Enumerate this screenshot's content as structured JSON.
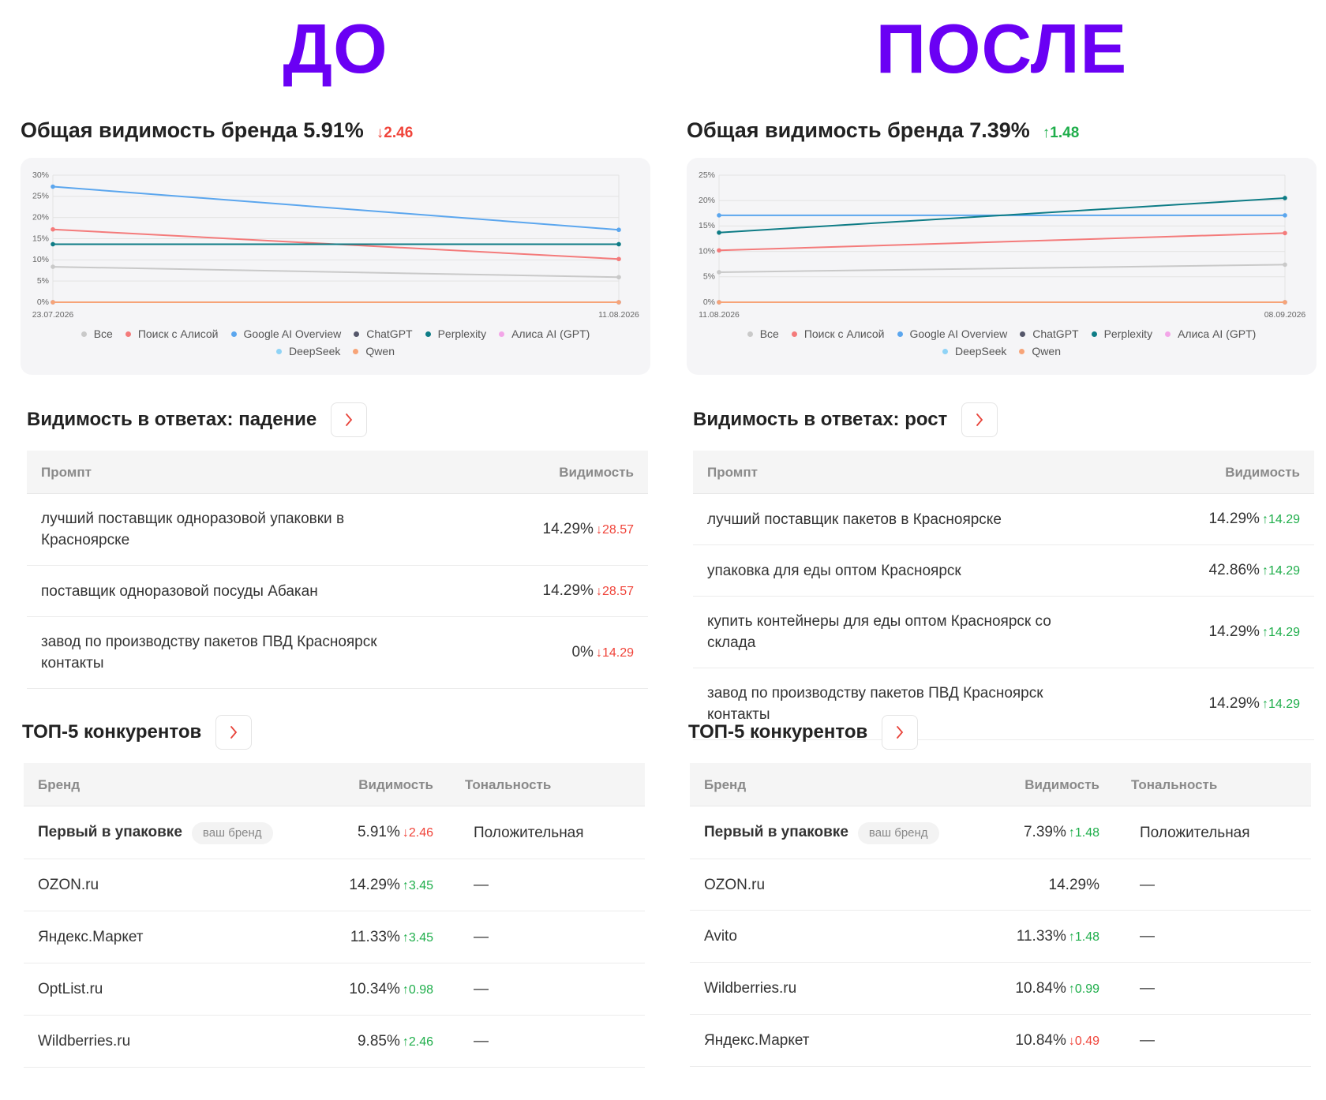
{
  "panels": [
    {
      "label": "ДО",
      "title": "Общая видимость бренда 5.91%",
      "delta": "↓2.46",
      "prompts": {
        "title": "Видимость в ответах: падение",
        "headers": [
          "Промпт",
          "Видимость"
        ],
        "rows": [
          {
            "prompt": "лучший поставщик одноразовой упаковки в Красноярске",
            "value": "14.29%",
            "delta": "↓28.57"
          },
          {
            "prompt": "поставщик одноразовой посуды Абакан",
            "value": "14.29%",
            "delta": "↓28.57"
          },
          {
            "prompt": "завод по производству пакетов ПВД Красноярск контакты",
            "value": "0%",
            "delta": "↓14.29"
          }
        ]
      },
      "competitors": {
        "title": "ТОП-5 конкурентов",
        "headers": [
          "Бренд",
          "Видимость",
          "Тональность"
        ],
        "rows": [
          {
            "name": "Первый в упаковке",
            "badge": "ваш бренд",
            "value": "5.91%",
            "delta": "↓2.46",
            "tone": "Положительная"
          },
          {
            "name": "OZON.ru",
            "value": "14.29%",
            "delta": "↑3.45",
            "tone": "—"
          },
          {
            "name": "Яндекс.Маркет",
            "value": "11.33%",
            "delta": "↑3.45",
            "tone": "—"
          },
          {
            "name": "OptList.ru",
            "value": "10.34%",
            "delta": "↑0.98",
            "tone": "—"
          },
          {
            "name": "Wildberries.ru",
            "value": "9.85%",
            "delta": "↑2.46",
            "tone": "—"
          }
        ]
      }
    },
    {
      "label": "ПОСЛЕ",
      "title": "Общая видимость бренда 7.39%",
      "delta": "↑1.48",
      "prompts": {
        "title": "Видимость в ответах: рост",
        "headers": [
          "Промпт",
          "Видимость"
        ],
        "rows": [
          {
            "prompt": "лучший поставщик пакетов в Красноярске",
            "value": "14.29%",
            "delta": "↑14.29"
          },
          {
            "prompt": "упаковка для еды оптом Красноярск",
            "value": "42.86%",
            "delta": "↑14.29"
          },
          {
            "prompt": "купить контейнеры для еды оптом Красноярск со склада",
            "value": "14.29%",
            "delta": "↑14.29"
          },
          {
            "prompt": "завод по производству пакетов ПВД Красноярск контакты",
            "value": "14.29%",
            "delta": "↑14.29"
          }
        ]
      },
      "competitors": {
        "title": "ТОП-5 конкурентов",
        "headers": [
          "Бренд",
          "Видимость",
          "Тональность"
        ],
        "rows": [
          {
            "name": "Первый в упаковке",
            "badge": "ваш бренд",
            "value": "7.39%",
            "delta": "↑1.48",
            "tone": "Положительная"
          },
          {
            "name": "OZON.ru",
            "value": "14.29%",
            "tone": "—"
          },
          {
            "name": "Avito",
            "value": "11.33%",
            "delta": "↑1.48",
            "tone": "—"
          },
          {
            "name": "Wildberries.ru",
            "value": "10.84%",
            "delta": "↑0.99",
            "tone": "—"
          },
          {
            "name": "Яндекс.Маркет",
            "value": "10.84%",
            "delta": "↓0.49",
            "tone": "—"
          }
        ]
      }
    }
  ],
  "chart_data": [
    {
      "type": "line",
      "x": [
        "23.07.2026",
        "11.08.2026"
      ],
      "ylim": [
        0,
        30
      ],
      "grid": true,
      "yticks": [
        {
          "value": 0,
          "label": "0%"
        },
        {
          "value": 5,
          "label": "5%"
        },
        {
          "value": 10,
          "label": "10%"
        },
        {
          "value": 15,
          "label": "15%"
        },
        {
          "value": 20,
          "label": "20%"
        },
        {
          "value": 25,
          "label": "25%"
        },
        {
          "value": 30,
          "label": "30%"
        }
      ],
      "series": [
        {
          "name": "Все",
          "color": "#c9c9c9",
          "values": [
            8.37,
            5.91
          ]
        },
        {
          "name": "Поиск с Алисой",
          "color": "#f47b7b",
          "values": [
            17.2,
            10.2
          ]
        },
        {
          "name": "Google AI Overview",
          "color": "#5ba6ee",
          "values": [
            27.3,
            17.1
          ]
        },
        {
          "name": "ChatGPT",
          "color": "#55576a",
          "values": [
            0,
            0
          ]
        },
        {
          "name": "Perplexity",
          "color": "#0e7c86",
          "values": [
            13.7,
            13.7
          ]
        },
        {
          "name": "Алиса AI (GPT)",
          "color": "#f3a6e8",
          "values": [
            0,
            0
          ]
        },
        {
          "name": "DeepSeek",
          "color": "#8fd3f6",
          "values": [
            0,
            0
          ]
        },
        {
          "name": "Qwen",
          "color": "#f7a478",
          "values": [
            0,
            0
          ]
        }
      ]
    },
    {
      "type": "line",
      "x": [
        "11.08.2026",
        "08.09.2026"
      ],
      "ylim": [
        0,
        25
      ],
      "grid": true,
      "yticks": [
        {
          "value": 0,
          "label": "0%"
        },
        {
          "value": 5,
          "label": "5%"
        },
        {
          "value": 10,
          "label": "10%"
        },
        {
          "value": 15,
          "label": "15%"
        },
        {
          "value": 20,
          "label": "20%"
        },
        {
          "value": 25,
          "label": "25%"
        }
      ],
      "series": [
        {
          "name": "Все",
          "color": "#c9c9c9",
          "values": [
            5.91,
            7.39
          ]
        },
        {
          "name": "Поиск с Алисой",
          "color": "#f47b7b",
          "values": [
            10.2,
            13.6
          ]
        },
        {
          "name": "Google AI Overview",
          "color": "#5ba6ee",
          "values": [
            17.1,
            17.1
          ]
        },
        {
          "name": "ChatGPT",
          "color": "#55576a",
          "values": [
            0,
            0
          ]
        },
        {
          "name": "Perplexity",
          "color": "#0e7c86",
          "values": [
            13.7,
            20.5
          ]
        },
        {
          "name": "Алиса AI (GPT)",
          "color": "#f3a6e8",
          "values": [
            0,
            0
          ]
        },
        {
          "name": "DeepSeek",
          "color": "#8fd3f6",
          "values": [
            0,
            0
          ]
        },
        {
          "name": "Qwen",
          "color": "#f7a478",
          "values": [
            0,
            0
          ]
        }
      ]
    }
  ]
}
